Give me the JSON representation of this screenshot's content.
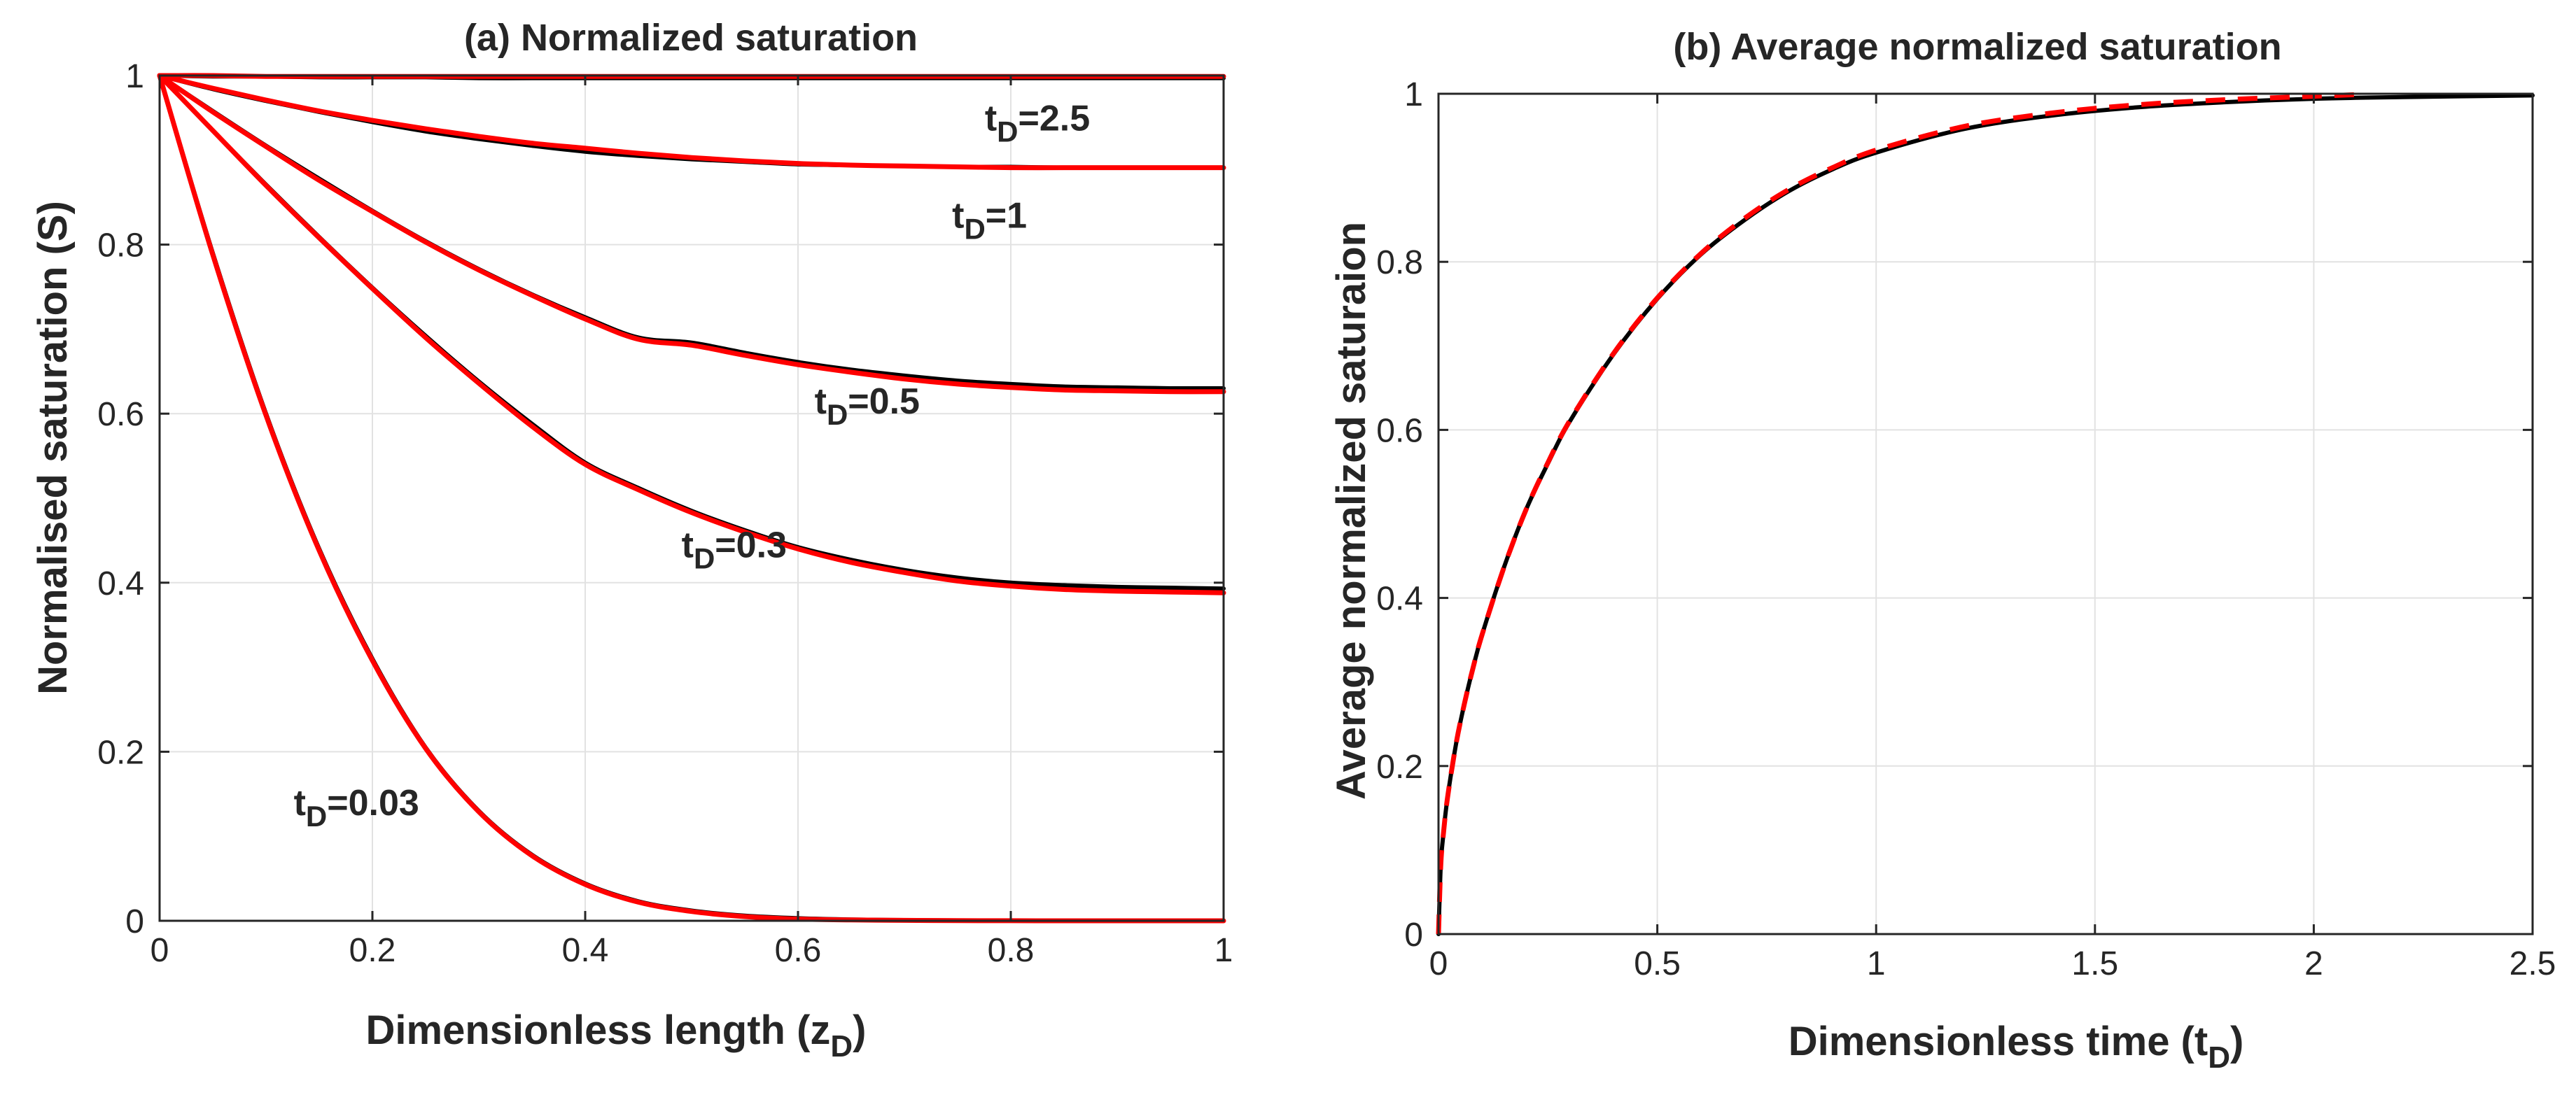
{
  "colors": {
    "black_series": "#000000",
    "red_series": "#ff0000",
    "grid": "#e2e2e2",
    "axis": "#262626"
  },
  "chart_data": [
    {
      "type": "line",
      "title": "(a) Normalized saturation",
      "xlabel_main": "Dimensionless length (z",
      "xlabel_sub": "D",
      "xlabel_close": ")",
      "ylabel": "Normalised saturation (S)",
      "xlim": [
        0,
        1
      ],
      "ylim": [
        0,
        1
      ],
      "xticks": [
        0,
        0.2,
        0.4,
        0.6,
        0.8,
        1
      ],
      "xtick_labels": [
        "0",
        "0.2",
        "0.4",
        "0.6",
        "0.8",
        "1"
      ],
      "yticks": [
        0,
        0.2,
        0.4,
        0.6,
        0.8,
        1
      ],
      "ytick_labels": [
        "0",
        "0.2",
        "0.4",
        "0.6",
        "0.8",
        "1"
      ],
      "grid": true,
      "x": [
        0,
        0.05,
        0.1,
        0.15,
        0.2,
        0.25,
        0.3,
        0.35,
        0.4,
        0.45,
        0.5,
        0.55,
        0.6,
        0.65,
        0.7,
        0.75,
        0.8,
        0.85,
        0.9,
        0.95,
        1.0
      ],
      "series": [
        {
          "name": "t_D=0.03 (black)",
          "color": "black",
          "style": "solid",
          "values": [
            1.0,
            0.79,
            0.6,
            0.44,
            0.31,
            0.205,
            0.13,
            0.078,
            0.044,
            0.023,
            0.012,
            0.006,
            0.003,
            0.0015,
            0.0008,
            0.0004,
            0.0002,
            0.0001,
            0.0,
            0.0,
            0.0
          ]
        },
        {
          "name": "t_D=0.03 (red)",
          "color": "red",
          "style": "solid",
          "values": [
            1.0,
            0.788,
            0.598,
            0.438,
            0.308,
            0.204,
            0.129,
            0.077,
            0.043,
            0.022,
            0.011,
            0.005,
            0.002,
            0.001,
            0.0005,
            0.0002,
            0.0001,
            0.0,
            0.0,
            0.0,
            0.0
          ]
        },
        {
          "name": "t_D=0.3 (black)",
          "color": "black",
          "style": "solid",
          "values": [
            1.0,
            0.935,
            0.871,
            0.809,
            0.749,
            0.692,
            0.638,
            0.588,
            0.542,
            0.512,
            0.485,
            0.462,
            0.442,
            0.427,
            0.415,
            0.406,
            0.4,
            0.397,
            0.395,
            0.394,
            0.393
          ]
        },
        {
          "name": "t_D=0.3 (red)",
          "color": "red",
          "style": "solid",
          "values": [
            1.0,
            0.935,
            0.87,
            0.808,
            0.748,
            0.69,
            0.636,
            0.585,
            0.54,
            0.51,
            0.483,
            0.46,
            0.44,
            0.424,
            0.412,
            0.402,
            0.396,
            0.392,
            0.39,
            0.389,
            0.388
          ]
        },
        {
          "name": "t_D=0.5 (black)",
          "color": "black",
          "style": "solid",
          "values": [
            1.0,
            0.958,
            0.917,
            0.878,
            0.84,
            0.804,
            0.771,
            0.741,
            0.714,
            0.69,
            0.684,
            0.672,
            0.661,
            0.652,
            0.645,
            0.639,
            0.635,
            0.632,
            0.631,
            0.63,
            0.63
          ]
        },
        {
          "name": "t_D=0.5 (red)",
          "color": "red",
          "style": "solid",
          "values": [
            1.0,
            0.957,
            0.916,
            0.876,
            0.839,
            0.803,
            0.77,
            0.74,
            0.712,
            0.688,
            0.681,
            0.669,
            0.658,
            0.649,
            0.641,
            0.635,
            0.631,
            0.628,
            0.627,
            0.626,
            0.626
          ]
        },
        {
          "name": "t_D=1 (black)",
          "color": "black",
          "style": "solid",
          "values": [
            1.0,
            0.984,
            0.97,
            0.957,
            0.945,
            0.934,
            0.925,
            0.917,
            0.91,
            0.905,
            0.901,
            0.898,
            0.895,
            0.894,
            0.893,
            0.892,
            0.892,
            0.891,
            0.891,
            0.891,
            0.891
          ]
        },
        {
          "name": "t_D=1 (red)",
          "color": "red",
          "style": "solid",
          "values": [
            1.0,
            0.985,
            0.971,
            0.958,
            0.947,
            0.937,
            0.928,
            0.92,
            0.914,
            0.908,
            0.903,
            0.899,
            0.896,
            0.894,
            0.893,
            0.892,
            0.891,
            0.891,
            0.891,
            0.891,
            0.891
          ]
        },
        {
          "name": "t_D=2.5 (black)",
          "color": "black",
          "style": "solid",
          "values": [
            1.0,
            0.999,
            0.999,
            0.998,
            0.998,
            0.998,
            0.997,
            0.997,
            0.997,
            0.997,
            0.997,
            0.997,
            0.997,
            0.997,
            0.997,
            0.997,
            0.997,
            0.997,
            0.997,
            0.997,
            0.997
          ]
        },
        {
          "name": "t_D=2.5 (red)",
          "color": "red",
          "style": "solid",
          "values": [
            1.0,
            1.0,
            0.999,
            0.999,
            0.999,
            0.999,
            0.999,
            0.999,
            0.999,
            0.999,
            0.999,
            0.999,
            0.999,
            0.999,
            0.999,
            0.999,
            0.999,
            0.999,
            0.999,
            0.999,
            0.999
          ]
        }
      ],
      "annotations": [
        {
          "main": "t",
          "sub": "D",
          "rest": "=2.5",
          "x": 0.825,
          "y": 0.935
        },
        {
          "main": "t",
          "sub": "D",
          "rest": "=1",
          "x": 0.78,
          "y": 0.82
        },
        {
          "main": "t",
          "sub": "D",
          "rest": "=0.5",
          "x": 0.665,
          "y": 0.6
        },
        {
          "main": "t",
          "sub": "D",
          "rest": "=0.3",
          "x": 0.54,
          "y": 0.43
        },
        {
          "main": "t",
          "sub": "D",
          "rest": "=0.03",
          "x": 0.185,
          "y": 0.125
        }
      ]
    },
    {
      "type": "line",
      "title": "(b) Average normalized saturation",
      "xlabel_main": "Dimensionless time (t",
      "xlabel_sub": "D",
      "xlabel_close": ")",
      "ylabel": "Average normalized saturaion",
      "xlim": [
        0,
        2.5
      ],
      "ylim": [
        0,
        1
      ],
      "xticks": [
        0,
        0.5,
        1,
        1.5,
        2,
        2.5
      ],
      "xtick_labels": [
        "0",
        "0.5",
        "1",
        "1.5",
        "2",
        "2.5"
      ],
      "yticks": [
        0,
        0.2,
        0.4,
        0.6,
        0.8,
        1
      ],
      "ytick_labels": [
        "0",
        "0.2",
        "0.4",
        "0.6",
        "0.8",
        "1"
      ],
      "grid": true,
      "series": [
        {
          "name": "average saturation (black solid)",
          "color": "black",
          "style": "solid",
          "x": [
            0,
            0.005,
            0.01,
            0.02,
            0.04,
            0.06,
            0.08,
            0.1,
            0.15,
            0.2,
            0.25,
            0.3,
            0.4,
            0.5,
            0.6,
            0.7,
            0.8,
            0.9,
            1.0,
            1.2,
            1.4,
            1.6,
            1.8,
            2.0,
            2.2,
            2.5
          ],
          "values": [
            0,
            0.08,
            0.113,
            0.16,
            0.226,
            0.276,
            0.319,
            0.357,
            0.437,
            0.505,
            0.56,
            0.61,
            0.69,
            0.756,
            0.809,
            0.85,
            0.884,
            0.91,
            0.93,
            0.958,
            0.974,
            0.984,
            0.99,
            0.994,
            0.996,
            0.998
          ]
        },
        {
          "name": "average saturation (red dashed)",
          "color": "red",
          "style": "dashed",
          "x": [
            0,
            0.005,
            0.01,
            0.02,
            0.04,
            0.06,
            0.08,
            0.1,
            0.15,
            0.2,
            0.25,
            0.3,
            0.4,
            0.5,
            0.6,
            0.7,
            0.8,
            0.9,
            1.0,
            1.2,
            1.4,
            1.6,
            1.8,
            2.0,
            2.1
          ],
          "values": [
            0,
            0.08,
            0.113,
            0.16,
            0.226,
            0.276,
            0.319,
            0.357,
            0.437,
            0.505,
            0.561,
            0.611,
            0.691,
            0.757,
            0.81,
            0.852,
            0.886,
            0.912,
            0.933,
            0.961,
            0.977,
            0.987,
            0.993,
            0.997,
            0.999
          ]
        }
      ]
    }
  ]
}
